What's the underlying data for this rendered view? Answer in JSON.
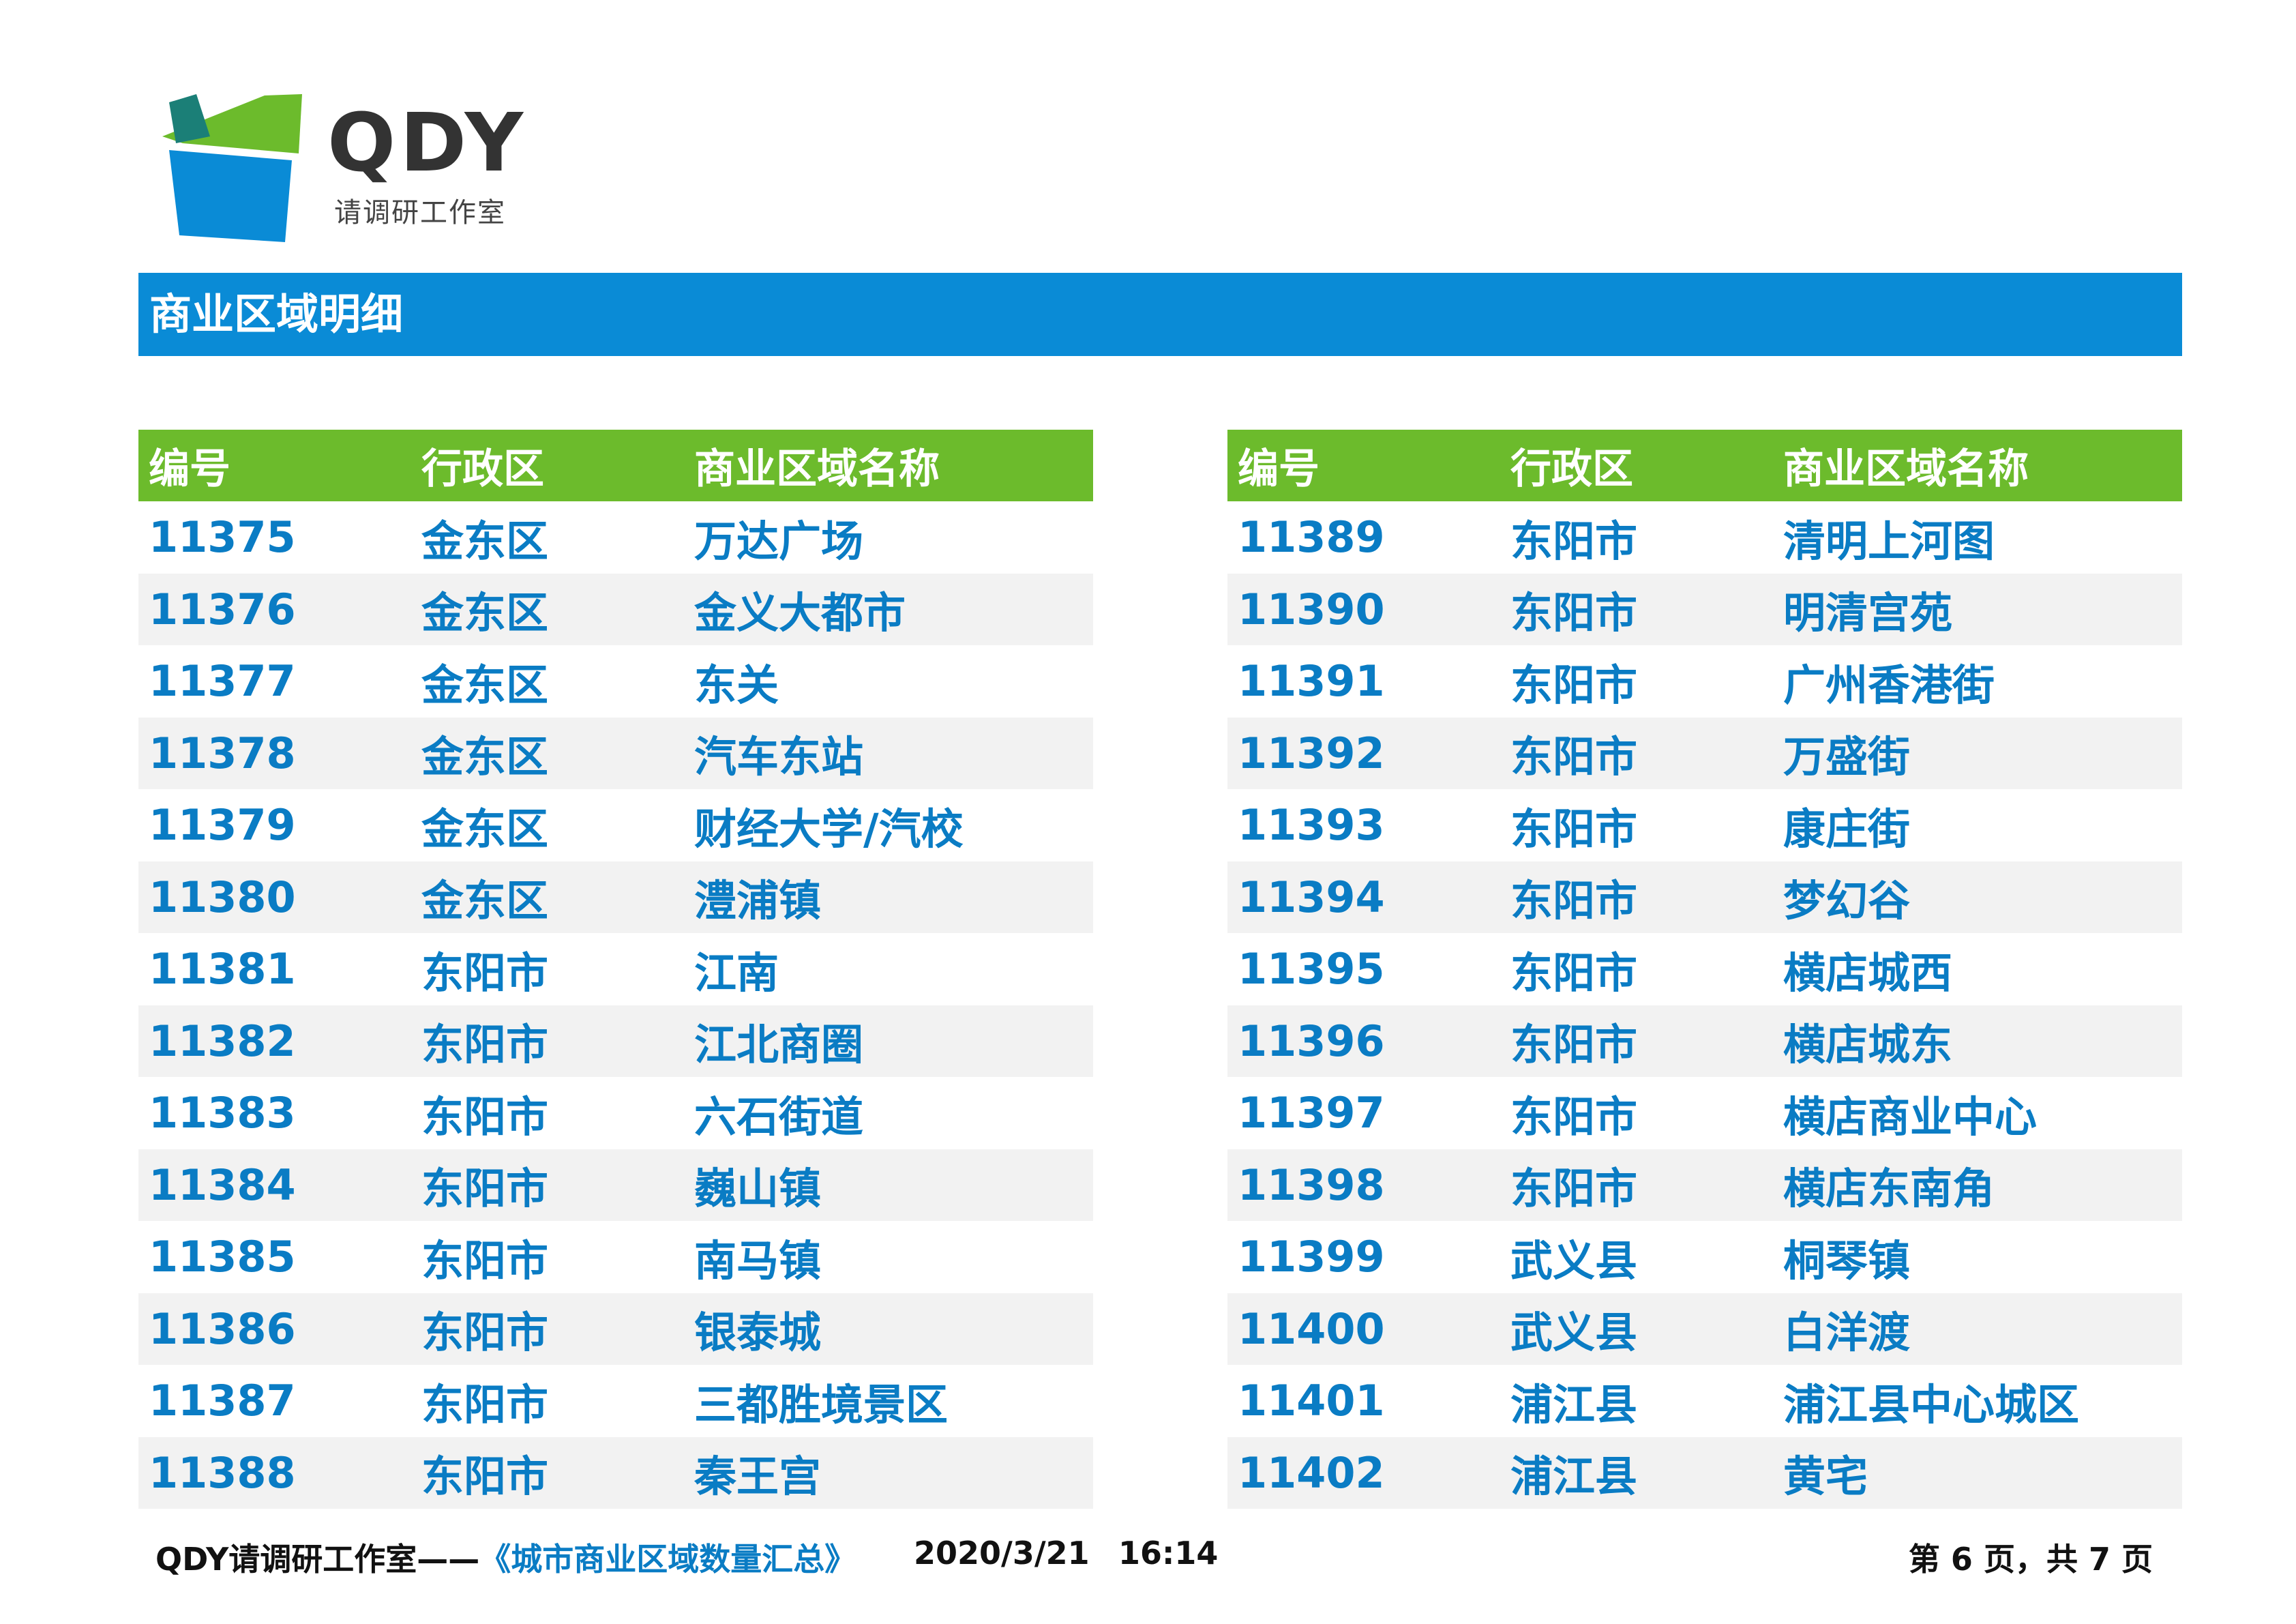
{
  "header": {
    "logo_text": "QDY",
    "logo_subtitle": "请调研工作室",
    "brand_colors": {
      "blue": "#0a8bd6",
      "green": "#6cbb2c",
      "teal": "#1b7f77"
    }
  },
  "banner": {
    "title": "商业区域明细"
  },
  "table": {
    "columns": [
      "编号",
      "行政区",
      "商业区域名称"
    ],
    "left_rows": [
      [
        "11375",
        "金东区",
        "万达广场"
      ],
      [
        "11376",
        "金东区",
        "金义大都市"
      ],
      [
        "11377",
        "金东区",
        "东关"
      ],
      [
        "11378",
        "金东区",
        "汽车东站"
      ],
      [
        "11379",
        "金东区",
        "财经大学/汽校"
      ],
      [
        "11380",
        "金东区",
        "澧浦镇"
      ],
      [
        "11381",
        "东阳市",
        "江南"
      ],
      [
        "11382",
        "东阳市",
        "江北商圈"
      ],
      [
        "11383",
        "东阳市",
        "六石街道"
      ],
      [
        "11384",
        "东阳市",
        "巍山镇"
      ],
      [
        "11385",
        "东阳市",
        "南马镇"
      ],
      [
        "11386",
        "东阳市",
        "银泰城"
      ],
      [
        "11387",
        "东阳市",
        "三都胜境景区"
      ],
      [
        "11388",
        "东阳市",
        "秦王宫"
      ]
    ],
    "right_rows": [
      [
        "11389",
        "东阳市",
        "清明上河图"
      ],
      [
        "11390",
        "东阳市",
        "明清宫苑"
      ],
      [
        "11391",
        "东阳市",
        "广州香港街"
      ],
      [
        "11392",
        "东阳市",
        "万盛街"
      ],
      [
        "11393",
        "东阳市",
        "康庄街"
      ],
      [
        "11394",
        "东阳市",
        "梦幻谷"
      ],
      [
        "11395",
        "东阳市",
        "横店城西"
      ],
      [
        "11396",
        "东阳市",
        "横店城东"
      ],
      [
        "11397",
        "东阳市",
        "横店商业中心"
      ],
      [
        "11398",
        "东阳市",
        "横店东南角"
      ],
      [
        "11399",
        "武义县",
        "桐琴镇"
      ],
      [
        "11400",
        "武义县",
        "白洋渡"
      ],
      [
        "11401",
        "浦江县",
        "浦江县中心城区"
      ],
      [
        "11402",
        "浦江县",
        "黄宅"
      ]
    ]
  },
  "footer": {
    "studio": "QDY请调研工作室——",
    "doc_title": "《城市商业区域数量汇总》",
    "date": "2020/3/21",
    "time": "16:14",
    "page_info": "第 6 页，共 7 页"
  }
}
